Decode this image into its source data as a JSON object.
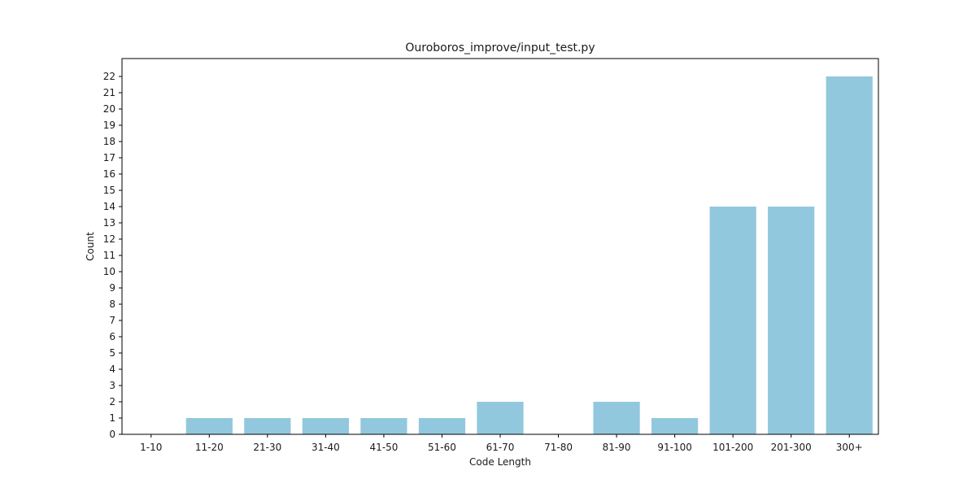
{
  "chart_data": {
    "type": "bar",
    "title": "Ouroboros_improve/input_test.py",
    "xlabel": "Code Length",
    "ylabel": "Count",
    "categories": [
      "1-10",
      "11-20",
      "21-30",
      "31-40",
      "41-50",
      "51-60",
      "61-70",
      "71-80",
      "81-90",
      "91-100",
      "101-200",
      "201-300",
      "300+"
    ],
    "values": [
      0,
      1,
      1,
      1,
      1,
      1,
      2,
      0,
      2,
      1,
      14,
      14,
      22
    ],
    "ylim": [
      0,
      23.1
    ],
    "yticks": [
      0,
      1,
      2,
      3,
      4,
      5,
      6,
      7,
      8,
      9,
      10,
      11,
      12,
      13,
      14,
      15,
      16,
      17,
      18,
      19,
      20,
      21,
      22
    ],
    "bar_color": "#92c8dd",
    "grid": false,
    "legend": "none"
  }
}
